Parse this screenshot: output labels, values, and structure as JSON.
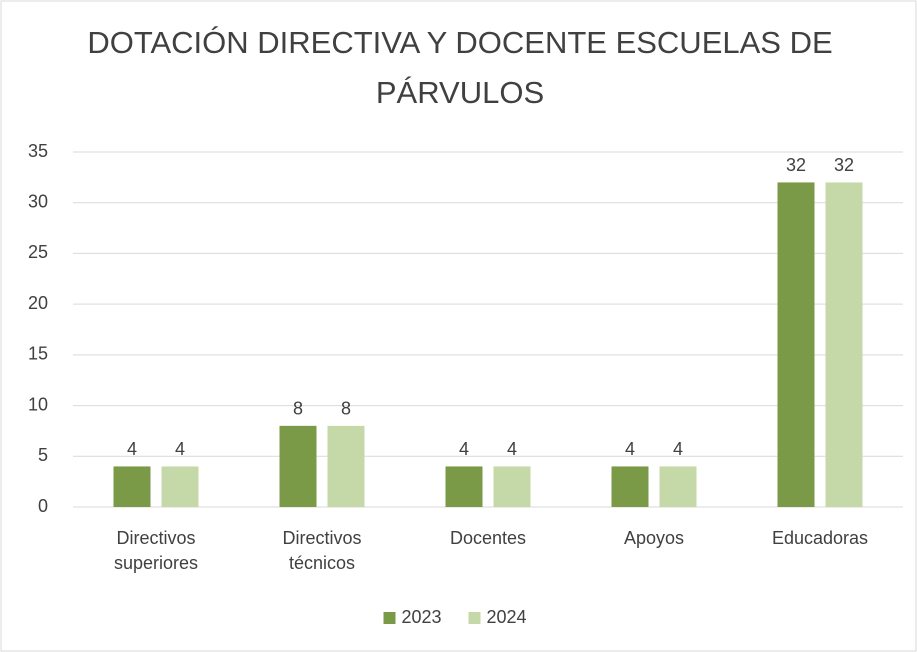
{
  "chart_data": {
    "type": "bar",
    "title": "DOTACIÓN DIRECTIVA Y DOCENTE ESCUELAS DE PÁRVULOS",
    "categories": [
      "Directivos superiores",
      "Directivos técnicos",
      "Docentes",
      "Apoyos",
      "Educadoras"
    ],
    "series": [
      {
        "name": "2023",
        "color": "#7a9a48",
        "values": [
          4,
          8,
          4,
          4,
          32
        ]
      },
      {
        "name": "2024",
        "color": "#c5d9a8",
        "values": [
          4,
          8,
          4,
          4,
          32
        ]
      }
    ],
    "ylim": [
      0,
      35
    ],
    "yticks": [
      0,
      5,
      10,
      15,
      20,
      25,
      30,
      35
    ],
    "grid": true,
    "legend": "bottom"
  }
}
